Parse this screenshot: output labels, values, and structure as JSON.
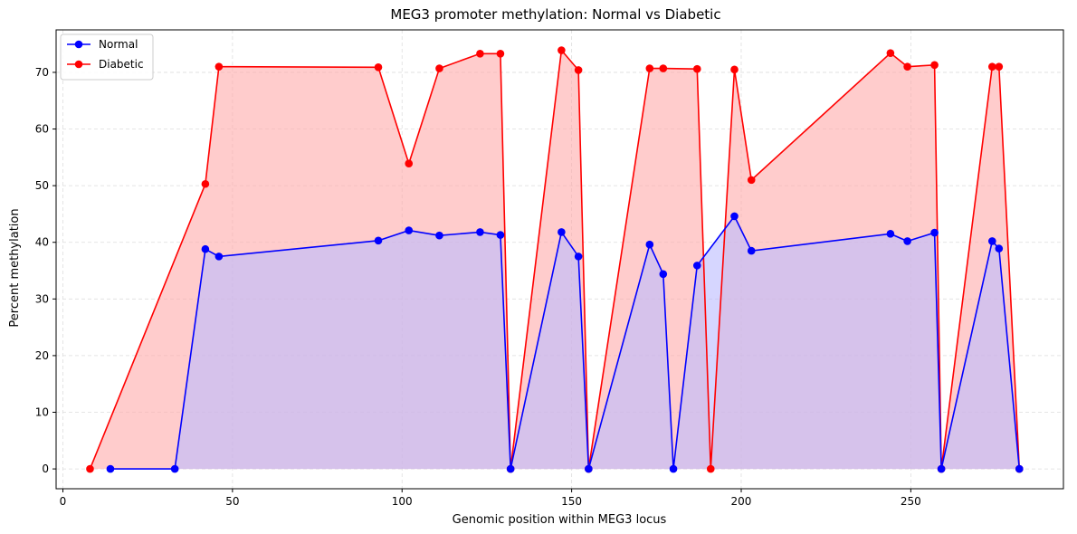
{
  "chart_data": {
    "type": "line",
    "title": "MEG3 promoter methylation: Normal vs Diabetic",
    "xlabel": "Genomic position within MEG3 locus",
    "ylabel": "Percent methylation",
    "xlim": [
      -2,
      295
    ],
    "ylim": [
      -3.5,
      77.5
    ],
    "xticks": [
      0,
      50,
      100,
      150,
      200,
      250
    ],
    "yticks": [
      0,
      10,
      20,
      30,
      40,
      50,
      60,
      70
    ],
    "grid": true,
    "legend_position": "top-left",
    "series": [
      {
        "name": "Normal",
        "color": "#0000ff",
        "fill": "#bbbbff",
        "x": [
          14,
          33,
          42,
          46,
          93,
          102,
          111,
          123,
          129,
          132,
          147,
          152,
          155,
          173,
          177,
          180,
          187,
          198,
          203,
          244,
          249,
          257,
          259,
          274,
          276,
          282
        ],
        "y": [
          0,
          0,
          38.8,
          37.5,
          40.3,
          42.1,
          41.2,
          41.8,
          41.3,
          0,
          41.8,
          37.5,
          0,
          39.6,
          34.4,
          0,
          35.9,
          44.6,
          38.5,
          41.5,
          40.2,
          41.7,
          0,
          40.2,
          38.9,
          0
        ]
      },
      {
        "name": "Diabetic",
        "color": "#ff0000",
        "fill": "#ffaaaa",
        "x": [
          8,
          42,
          46,
          93,
          102,
          111,
          123,
          129,
          132,
          147,
          152,
          155,
          173,
          177,
          187,
          191,
          198,
          203,
          244,
          249,
          257,
          259,
          274,
          276,
          282
        ],
        "y": [
          0,
          50.3,
          71,
          70.9,
          53.9,
          70.7,
          73.3,
          73.3,
          0,
          73.9,
          70.4,
          0,
          70.7,
          70.7,
          70.6,
          0,
          70.5,
          51,
          73.4,
          71,
          71.3,
          0,
          71,
          71,
          0
        ]
      }
    ]
  }
}
